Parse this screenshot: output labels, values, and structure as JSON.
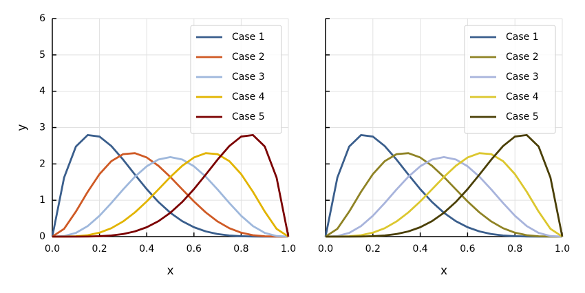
{
  "chart_data": [
    {
      "type": "line",
      "xlabel": "x",
      "ylabel": "y",
      "x": [
        0,
        0.05,
        0.1,
        0.15,
        0.2,
        0.25,
        0.3,
        0.35,
        0.4,
        0.45,
        0.5,
        0.55,
        0.6,
        0.65,
        0.7,
        0.75,
        0.8,
        0.85,
        0.9,
        0.95,
        1
      ],
      "series": [
        {
          "name": "Case 1",
          "color": "#3a5e8c",
          "values": [
            0,
            1.625,
            2.48,
            2.795,
            2.753,
            2.492,
            2.118,
            1.705,
            1.306,
            0.951,
            0.656,
            0.426,
            0.258,
            0.143,
            0.071,
            0.031,
            0.011,
            0.003,
            0,
            0,
            0
          ]
        },
        {
          "name": "Case 2",
          "color": "#cf5a25",
          "values": [
            0,
            0.214,
            0.689,
            1.233,
            1.72,
            2.076,
            2.269,
            2.296,
            2.177,
            1.946,
            1.641,
            1.302,
            0.968,
            0.666,
            0.417,
            0.231,
            0.108,
            0.038,
            0.009,
            0.001,
            0
          ]
        },
        {
          "name": "Case 3",
          "color": "#9fb8dc",
          "values": [
            0,
            0.015,
            0.102,
            0.29,
            0.573,
            0.923,
            1.297,
            1.648,
            1.935,
            2.123,
            2.1875,
            2.123,
            1.935,
            1.648,
            1.297,
            0.923,
            0.573,
            0.29,
            0.102,
            0.015,
            0
          ]
        },
        {
          "name": "Case 4",
          "color": "#e2b400",
          "values": [
            0,
            0.001,
            0.009,
            0.038,
            0.108,
            0.231,
            0.417,
            0.666,
            0.968,
            1.302,
            1.641,
            1.946,
            2.177,
            2.296,
            2.269,
            2.076,
            1.72,
            1.233,
            0.689,
            0.214,
            0
          ]
        },
        {
          "name": "Case 5",
          "color": "#7b0000",
          "values": [
            0,
            0,
            0,
            0.003,
            0.011,
            0.031,
            0.071,
            0.143,
            0.258,
            0.426,
            0.656,
            0.951,
            1.306,
            1.705,
            2.118,
            2.492,
            2.753,
            2.795,
            2.48,
            1.625,
            0
          ]
        }
      ],
      "xlim": [
        0,
        1
      ],
      "ylim": [
        0,
        6
      ],
      "xticks": [
        {
          "value": 0,
          "label": "0.0"
        },
        {
          "value": 0.2,
          "label": "0.2"
        },
        {
          "value": 0.4,
          "label": "0.4"
        },
        {
          "value": 0.6,
          "label": "0.6"
        },
        {
          "value": 0.8,
          "label": "0.8"
        },
        {
          "value": 1,
          "label": "1.0"
        }
      ],
      "yticks": [
        0,
        1,
        2,
        3,
        4,
        5,
        6
      ],
      "grid": true,
      "legend": "upper right"
    },
    {
      "type": "line",
      "xlabel": "x",
      "x": [
        0,
        0.05,
        0.1,
        0.15,
        0.2,
        0.25,
        0.3,
        0.35,
        0.4,
        0.45,
        0.5,
        0.55,
        0.6,
        0.65,
        0.7,
        0.75,
        0.8,
        0.85,
        0.9,
        0.95,
        1
      ],
      "series": [
        {
          "name": "Case 1",
          "color": "#3a5e8c",
          "values": [
            0,
            1.625,
            2.48,
            2.795,
            2.753,
            2.492,
            2.118,
            1.705,
            1.306,
            0.951,
            0.656,
            0.426,
            0.258,
            0.143,
            0.071,
            0.031,
            0.011,
            0.003,
            0,
            0,
            0
          ]
        },
        {
          "name": "Case 2",
          "color": "#8f8325",
          "values": [
            0,
            0.214,
            0.689,
            1.233,
            1.72,
            2.076,
            2.269,
            2.296,
            2.177,
            1.946,
            1.641,
            1.302,
            0.968,
            0.666,
            0.417,
            0.231,
            0.108,
            0.038,
            0.009,
            0.001,
            0
          ]
        },
        {
          "name": "Case 3",
          "color": "#a8b4dc",
          "values": [
            0,
            0.015,
            0.102,
            0.29,
            0.573,
            0.923,
            1.297,
            1.648,
            1.935,
            2.123,
            2.1875,
            2.123,
            1.935,
            1.648,
            1.297,
            0.923,
            0.573,
            0.29,
            0.102,
            0.015,
            0
          ]
        },
        {
          "name": "Case 4",
          "color": "#dcc72e",
          "values": [
            0,
            0.001,
            0.009,
            0.038,
            0.108,
            0.231,
            0.417,
            0.666,
            0.968,
            1.302,
            1.641,
            1.946,
            2.177,
            2.296,
            2.269,
            2.076,
            1.72,
            1.233,
            0.689,
            0.214,
            0
          ]
        },
        {
          "name": "Case 5",
          "color": "#4a3f06",
          "values": [
            0,
            0,
            0,
            0.003,
            0.011,
            0.031,
            0.071,
            0.143,
            0.258,
            0.426,
            0.656,
            0.951,
            1.306,
            1.705,
            2.118,
            2.492,
            2.753,
            2.795,
            2.48,
            1.625,
            0
          ]
        }
      ],
      "xlim": [
        0,
        1
      ],
      "ylim": [
        0,
        6
      ],
      "xticks": [
        {
          "value": 0,
          "label": "0.0"
        },
        {
          "value": 0.2,
          "label": "0.2"
        },
        {
          "value": 0.4,
          "label": "0.4"
        },
        {
          "value": 0.6,
          "label": "0.6"
        },
        {
          "value": 0.8,
          "label": "0.8"
        },
        {
          "value": 1,
          "label": "1.0"
        }
      ],
      "yticks": [
        0,
        1,
        2,
        3,
        4,
        5,
        6
      ],
      "grid": true,
      "legend": "upper right"
    }
  ]
}
